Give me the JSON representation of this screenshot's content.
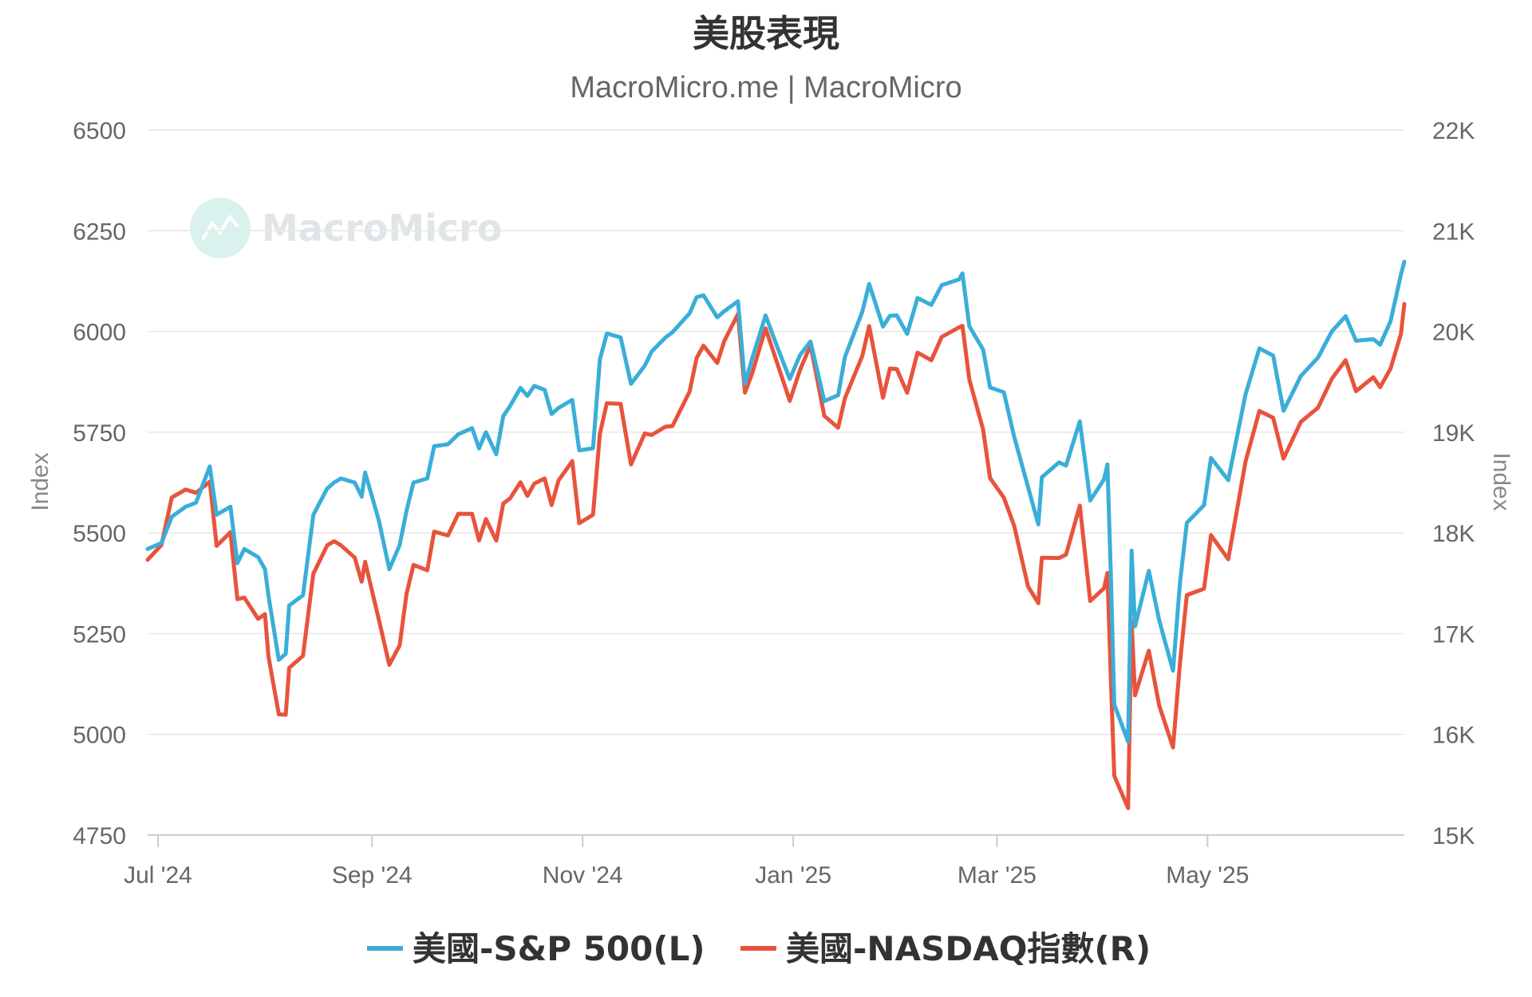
{
  "title": "美股表現",
  "subtitle": "MacroMicro.me | MacroMicro",
  "watermark": "MacroMicro",
  "colors": {
    "sp500": "#3aaed8",
    "nasdaq": "#e8533c",
    "grid": "#e6e6e6"
  },
  "chart_data": {
    "type": "line",
    "x_labels": [
      "Jul '24",
      "Sep '24",
      "Nov '24",
      "Jan '25",
      "Mar '25",
      "May '25"
    ],
    "y_left": {
      "label": "Index",
      "ticks": [
        "4750",
        "5000",
        "5250",
        "5500",
        "5750",
        "6000",
        "6250",
        "6500"
      ],
      "range": [
        4750,
        6500
      ]
    },
    "y_right": {
      "label": "Index",
      "ticks": [
        "15K",
        "16K",
        "17K",
        "18K",
        "19K",
        "20K",
        "21K",
        "22K"
      ],
      "range": [
        15000,
        22000
      ]
    },
    "grid": true,
    "legend_position": "bottom",
    "series": [
      {
        "name": "美國-S&P 500(L)",
        "axis": "left",
        "color": "#3aaed8",
        "points": [
          [
            "2024-06-28",
            5460
          ],
          [
            "2024-07-02",
            5475
          ],
          [
            "2024-07-05",
            5540
          ],
          [
            "2024-07-09",
            5565
          ],
          [
            "2024-07-12",
            5575
          ],
          [
            "2024-07-16",
            5665
          ],
          [
            "2024-07-18",
            5545
          ],
          [
            "2024-07-22",
            5565
          ],
          [
            "2024-07-24",
            5425
          ],
          [
            "2024-07-26",
            5460
          ],
          [
            "2024-07-30",
            5440
          ],
          [
            "2024-08-01",
            5410
          ],
          [
            "2024-08-02",
            5345
          ],
          [
            "2024-08-05",
            5185
          ],
          [
            "2024-08-07",
            5200
          ],
          [
            "2024-08-08",
            5320
          ],
          [
            "2024-08-12",
            5345
          ],
          [
            "2024-08-15",
            5545
          ],
          [
            "2024-08-19",
            5610
          ],
          [
            "2024-08-21",
            5625
          ],
          [
            "2024-08-23",
            5635
          ],
          [
            "2024-08-27",
            5625
          ],
          [
            "2024-08-29",
            5590
          ],
          [
            "2024-08-30",
            5650
          ],
          [
            "2024-09-03",
            5530
          ],
          [
            "2024-09-06",
            5410
          ],
          [
            "2024-09-09",
            5470
          ],
          [
            "2024-09-11",
            5555
          ],
          [
            "2024-09-13",
            5625
          ],
          [
            "2024-09-17",
            5635
          ],
          [
            "2024-09-19",
            5715
          ],
          [
            "2024-09-23",
            5720
          ],
          [
            "2024-09-26",
            5745
          ],
          [
            "2024-09-30",
            5760
          ],
          [
            "2024-10-02",
            5710
          ],
          [
            "2024-10-04",
            5750
          ],
          [
            "2024-10-07",
            5695
          ],
          [
            "2024-10-09",
            5790
          ],
          [
            "2024-10-11",
            5815
          ],
          [
            "2024-10-14",
            5860
          ],
          [
            "2024-10-16",
            5840
          ],
          [
            "2024-10-18",
            5865
          ],
          [
            "2024-10-21",
            5855
          ],
          [
            "2024-10-23",
            5795
          ],
          [
            "2024-10-25",
            5810
          ],
          [
            "2024-10-29",
            5830
          ],
          [
            "2024-10-31",
            5705
          ],
          [
            "2024-11-04",
            5710
          ],
          [
            "2024-11-06",
            5930
          ],
          [
            "2024-11-08",
            5995
          ],
          [
            "2024-11-12",
            5985
          ],
          [
            "2024-11-15",
            5870
          ],
          [
            "2024-11-19",
            5915
          ],
          [
            "2024-11-21",
            5950
          ],
          [
            "2024-11-25",
            5985
          ],
          [
            "2024-11-27",
            5998
          ],
          [
            "2024-12-02",
            6045
          ],
          [
            "2024-12-04",
            6085
          ],
          [
            "2024-12-06",
            6090
          ],
          [
            "2024-12-10",
            6035
          ],
          [
            "2024-12-12",
            6050
          ],
          [
            "2024-12-16",
            6075
          ],
          [
            "2024-12-18",
            5870
          ],
          [
            "2024-12-20",
            5930
          ],
          [
            "2024-12-24",
            6040
          ],
          [
            "2024-12-27",
            5970
          ],
          [
            "2024-12-31",
            5882
          ],
          [
            "2025-01-03",
            5942
          ],
          [
            "2025-01-06",
            5975
          ],
          [
            "2025-01-10",
            5827
          ],
          [
            "2025-01-14",
            5842
          ],
          [
            "2025-01-16",
            5937
          ],
          [
            "2025-01-21",
            6049
          ],
          [
            "2025-01-23",
            6118
          ],
          [
            "2025-01-27",
            6012
          ],
          [
            "2025-01-29",
            6039
          ],
          [
            "2025-01-31",
            6040
          ],
          [
            "2025-02-03",
            5994
          ],
          [
            "2025-02-06",
            6083
          ],
          [
            "2025-02-10",
            6066
          ],
          [
            "2025-02-13",
            6115
          ],
          [
            "2025-02-18",
            6129
          ],
          [
            "2025-02-19",
            6144
          ],
          [
            "2025-02-21",
            6013
          ],
          [
            "2025-02-25",
            5955
          ],
          [
            "2025-02-27",
            5861
          ],
          [
            "2025-03-03",
            5849
          ],
          [
            "2025-03-06",
            5738
          ],
          [
            "2025-03-10",
            5614
          ],
          [
            "2025-03-13",
            5521
          ],
          [
            "2025-03-14",
            5638
          ],
          [
            "2025-03-19",
            5675
          ],
          [
            "2025-03-21",
            5667
          ],
          [
            "2025-03-25",
            5777
          ],
          [
            "2025-03-28",
            5580
          ],
          [
            "2025-04-01",
            5633
          ],
          [
            "2025-04-02",
            5670
          ],
          [
            "2025-04-03",
            5396
          ],
          [
            "2025-04-04",
            5074
          ],
          [
            "2025-04-08",
            4982
          ],
          [
            "2025-04-09",
            5456
          ],
          [
            "2025-04-10",
            5268
          ],
          [
            "2025-04-14",
            5406
          ],
          [
            "2025-04-17",
            5283
          ],
          [
            "2025-04-21",
            5158
          ],
          [
            "2025-04-23",
            5376
          ],
          [
            "2025-04-25",
            5525
          ],
          [
            "2025-04-30",
            5569
          ],
          [
            "2025-05-02",
            5686
          ],
          [
            "2025-05-07",
            5631
          ],
          [
            "2025-05-12",
            5844
          ],
          [
            "2025-05-16",
            5958
          ],
          [
            "2025-05-20",
            5940
          ],
          [
            "2025-05-23",
            5803
          ],
          [
            "2025-05-28",
            5889
          ],
          [
            "2025-06-02",
            5935
          ],
          [
            "2025-06-06",
            6000
          ],
          [
            "2025-06-10",
            6038
          ],
          [
            "2025-06-13",
            5977
          ],
          [
            "2025-06-18",
            5981
          ],
          [
            "2025-06-20",
            5967
          ],
          [
            "2025-06-23",
            6025
          ],
          [
            "2025-06-26",
            6141
          ],
          [
            "2025-06-27",
            6173
          ]
        ]
      },
      {
        "name": "美國-NASDAQ指數(R)",
        "axis": "right",
        "color": "#e8533c",
        "points": [
          [
            "2024-06-28",
            17733
          ],
          [
            "2024-07-02",
            17880
          ],
          [
            "2024-07-05",
            18352
          ],
          [
            "2024-07-09",
            18430
          ],
          [
            "2024-07-12",
            18398
          ],
          [
            "2024-07-16",
            18509
          ],
          [
            "2024-07-18",
            17871
          ],
          [
            "2024-07-22",
            18007
          ],
          [
            "2024-07-24",
            17342
          ],
          [
            "2024-07-26",
            17358
          ],
          [
            "2024-07-30",
            17147
          ],
          [
            "2024-08-01",
            17194
          ],
          [
            "2024-08-02",
            16776
          ],
          [
            "2024-08-05",
            16200
          ],
          [
            "2024-08-07",
            16195
          ],
          [
            "2024-08-08",
            16660
          ],
          [
            "2024-08-12",
            16780
          ],
          [
            "2024-08-15",
            17594
          ],
          [
            "2024-08-19",
            17876
          ],
          [
            "2024-08-21",
            17918
          ],
          [
            "2024-08-23",
            17877
          ],
          [
            "2024-08-27",
            17754
          ],
          [
            "2024-08-29",
            17516
          ],
          [
            "2024-08-30",
            17714
          ],
          [
            "2024-09-03",
            17136
          ],
          [
            "2024-09-06",
            16690
          ],
          [
            "2024-09-09",
            16884
          ],
          [
            "2024-09-11",
            17395
          ],
          [
            "2024-09-13",
            17683
          ],
          [
            "2024-09-17",
            17628
          ],
          [
            "2024-09-19",
            18013
          ],
          [
            "2024-09-23",
            17974
          ],
          [
            "2024-09-26",
            18190
          ],
          [
            "2024-09-30",
            18189
          ],
          [
            "2024-10-02",
            17925
          ],
          [
            "2024-10-04",
            18138
          ],
          [
            "2024-10-07",
            17923
          ],
          [
            "2024-10-09",
            18291
          ],
          [
            "2024-10-11",
            18343
          ],
          [
            "2024-10-14",
            18503
          ],
          [
            "2024-10-16",
            18368
          ],
          [
            "2024-10-18",
            18490
          ],
          [
            "2024-10-21",
            18540
          ],
          [
            "2024-10-23",
            18276
          ],
          [
            "2024-10-25",
            18519
          ],
          [
            "2024-10-29",
            18713
          ],
          [
            "2024-10-31",
            18096
          ],
          [
            "2024-11-04",
            18180
          ],
          [
            "2024-11-06",
            18983
          ],
          [
            "2024-11-08",
            19287
          ],
          [
            "2024-11-12",
            19281
          ],
          [
            "2024-11-15",
            18680
          ],
          [
            "2024-11-19",
            18988
          ],
          [
            "2024-11-21",
            18972
          ],
          [
            "2024-11-25",
            19054
          ],
          [
            "2024-11-27",
            19060
          ],
          [
            "2024-12-02",
            19404
          ],
          [
            "2024-12-04",
            19735
          ],
          [
            "2024-12-06",
            19860
          ],
          [
            "2024-12-10",
            19687
          ],
          [
            "2024-12-12",
            19902
          ],
          [
            "2024-12-16",
            20174
          ],
          [
            "2024-12-18",
            19393
          ],
          [
            "2024-12-20",
            19573
          ],
          [
            "2024-12-24",
            20031
          ],
          [
            "2024-12-27",
            19722
          ],
          [
            "2024-12-31",
            19311
          ],
          [
            "2025-01-03",
            19621
          ],
          [
            "2025-01-06",
            19864
          ],
          [
            "2025-01-10",
            19162
          ],
          [
            "2025-01-14",
            19044
          ],
          [
            "2025-01-16",
            19339
          ],
          [
            "2025-01-21",
            19757
          ],
          [
            "2025-01-23",
            20054
          ],
          [
            "2025-01-27",
            19342
          ],
          [
            "2025-01-29",
            19632
          ],
          [
            "2025-01-31",
            19627
          ],
          [
            "2025-02-03",
            19392
          ],
          [
            "2025-02-06",
            19791
          ],
          [
            "2025-02-10",
            19714
          ],
          [
            "2025-02-13",
            19945
          ],
          [
            "2025-02-18",
            20041
          ],
          [
            "2025-02-19",
            20056
          ],
          [
            "2025-02-21",
            19524
          ],
          [
            "2025-02-25",
            19026
          ],
          [
            "2025-02-27",
            18544
          ],
          [
            "2025-03-03",
            18350
          ],
          [
            "2025-03-06",
            18069
          ],
          [
            "2025-03-10",
            17468
          ],
          [
            "2025-03-13",
            17303
          ],
          [
            "2025-03-14",
            17754
          ],
          [
            "2025-03-19",
            17751
          ],
          [
            "2025-03-21",
            17784
          ],
          [
            "2025-03-25",
            18271
          ],
          [
            "2025-03-28",
            17323
          ],
          [
            "2025-04-01",
            17450
          ],
          [
            "2025-04-02",
            17601
          ],
          [
            "2025-04-03",
            16551
          ],
          [
            "2025-04-04",
            15588
          ],
          [
            "2025-04-08",
            15268
          ],
          [
            "2025-04-09",
            17125
          ],
          [
            "2025-04-10",
            16387
          ],
          [
            "2025-04-14",
            16831
          ],
          [
            "2025-04-17",
            16286
          ],
          [
            "2025-04-21",
            15870
          ],
          [
            "2025-04-23",
            16708
          ],
          [
            "2025-04-25",
            17383
          ],
          [
            "2025-04-30",
            17446
          ],
          [
            "2025-05-02",
            17978
          ],
          [
            "2025-05-07",
            17738
          ],
          [
            "2025-05-12",
            18708
          ],
          [
            "2025-05-16",
            19211
          ],
          [
            "2025-05-20",
            19143
          ],
          [
            "2025-05-23",
            18737
          ],
          [
            "2025-05-28",
            19101
          ],
          [
            "2025-06-02",
            19243
          ],
          [
            "2025-06-06",
            19530
          ],
          [
            "2025-06-10",
            19715
          ],
          [
            "2025-06-13",
            19407
          ],
          [
            "2025-06-18",
            19546
          ],
          [
            "2025-06-20",
            19447
          ],
          [
            "2025-06-23",
            19631
          ],
          [
            "2025-06-26",
            19974
          ],
          [
            "2025-06-27",
            20273
          ]
        ]
      }
    ]
  }
}
